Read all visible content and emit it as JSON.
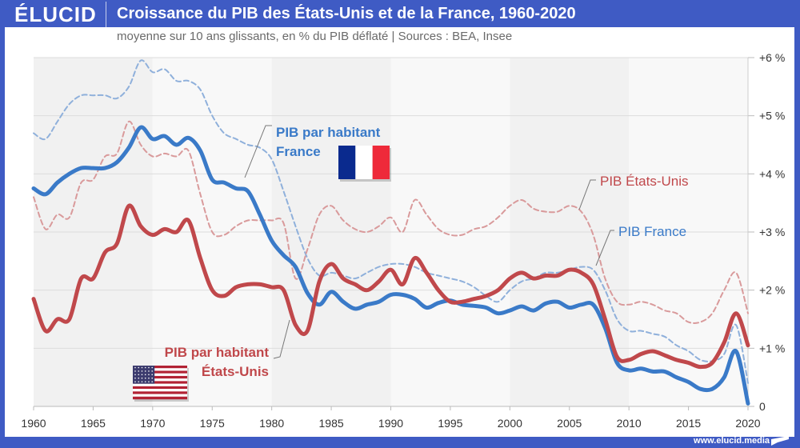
{
  "header": {
    "logo": "ÉLUCID",
    "title": "Croissance du PIB des États-Unis et de la France, 1960-2020",
    "subtitle": "moyenne sur 10 ans glissants, en % du PIB déflaté  |  Sources : BEA, Insee"
  },
  "footer": {
    "url": "www.elucid.media"
  },
  "colors": {
    "brand": "#3f5bc4",
    "france": "#3a7ac8",
    "usa": "#c0484b",
    "france_dashed": "#8fb0db",
    "usa_dashed": "#d99a9b"
  },
  "chart_data": {
    "type": "line",
    "title": "Croissance du PIB des États-Unis et de la France, 1960-2020",
    "subtitle": "moyenne sur 10 ans glissants, en % du PIB déflaté | Sources : BEA, Insee",
    "xlabel": "",
    "ylabel": "",
    "xlim": [
      1960,
      2020
    ],
    "ylim": [
      0,
      6
    ],
    "x_ticks": [
      1960,
      1965,
      1970,
      1975,
      1980,
      1985,
      1990,
      1995,
      2000,
      2005,
      2010,
      2015,
      2020
    ],
    "x_tick_labels": [
      "1960",
      "1965",
      "1970",
      "1975",
      "1980",
      "1985",
      "1990",
      "1995",
      "2000",
      "2005",
      "2010",
      "2015",
      "2020"
    ],
    "y_ticks": [
      0,
      1,
      2,
      3,
      4,
      5,
      6
    ],
    "y_tick_labels": [
      "0",
      "+1 %",
      "+2 %",
      "+3 %",
      "+4 %",
      "+5 %",
      "+6 %"
    ],
    "y_axis_side": "right",
    "grid": true,
    "decade_bands": true,
    "x": [
      1960,
      1961,
      1962,
      1963,
      1964,
      1965,
      1966,
      1967,
      1968,
      1969,
      1970,
      1971,
      1972,
      1973,
      1974,
      1975,
      1976,
      1977,
      1978,
      1979,
      1980,
      1981,
      1982,
      1983,
      1984,
      1985,
      1986,
      1987,
      1988,
      1989,
      1990,
      1991,
      1992,
      1993,
      1994,
      1995,
      1996,
      1997,
      1998,
      1999,
      2000,
      2001,
      2002,
      2003,
      2004,
      2005,
      2006,
      2007,
      2008,
      2009,
      2010,
      2011,
      2012,
      2013,
      2014,
      2015,
      2016,
      2017,
      2018,
      2019,
      2020
    ],
    "series": [
      {
        "name": "PIB France",
        "style": "dashed",
        "color": "#8fb0db",
        "values": [
          4.7,
          4.6,
          4.9,
          5.2,
          5.35,
          5.35,
          5.35,
          5.3,
          5.5,
          5.95,
          5.75,
          5.8,
          5.6,
          5.6,
          5.45,
          5.0,
          4.7,
          4.6,
          4.5,
          4.45,
          4.25,
          3.7,
          3.1,
          2.55,
          2.25,
          2.3,
          2.25,
          2.2,
          2.3,
          2.4,
          2.45,
          2.45,
          2.4,
          2.3,
          2.25,
          2.2,
          2.15,
          2.05,
          1.9,
          1.8,
          2.0,
          2.15,
          2.2,
          2.3,
          2.3,
          2.35,
          2.4,
          2.35,
          2.0,
          1.5,
          1.3,
          1.3,
          1.25,
          1.2,
          1.05,
          0.95,
          0.8,
          0.78,
          0.9,
          1.4,
          0.4
        ]
      },
      {
        "name": "PIB États-Unis",
        "style": "dashed",
        "color": "#d99a9b",
        "values": [
          3.6,
          3.05,
          3.3,
          3.25,
          3.85,
          3.9,
          4.3,
          4.35,
          4.9,
          4.5,
          4.3,
          4.35,
          4.3,
          4.4,
          3.65,
          3.0,
          2.95,
          3.1,
          3.2,
          3.2,
          3.2,
          3.15,
          2.2,
          2.7,
          3.3,
          3.45,
          3.2,
          3.05,
          3.0,
          3.1,
          3.25,
          3.0,
          3.55,
          3.3,
          3.05,
          2.95,
          2.95,
          3.05,
          3.1,
          3.25,
          3.45,
          3.55,
          3.4,
          3.35,
          3.35,
          3.45,
          3.35,
          2.95,
          2.2,
          1.8,
          1.75,
          1.8,
          1.75,
          1.65,
          1.6,
          1.45,
          1.45,
          1.6,
          2.0,
          2.3,
          1.6
        ]
      },
      {
        "name": "PIB par habitant France",
        "style": "solid",
        "color": "#3a7ac8",
        "values": [
          3.75,
          3.65,
          3.85,
          4.0,
          4.1,
          4.1,
          4.1,
          4.2,
          4.45,
          4.8,
          4.6,
          4.65,
          4.5,
          4.62,
          4.4,
          3.9,
          3.85,
          3.75,
          3.7,
          3.3,
          2.85,
          2.6,
          2.4,
          1.95,
          1.75,
          1.97,
          1.8,
          1.68,
          1.75,
          1.8,
          1.92,
          1.92,
          1.85,
          1.7,
          1.78,
          1.82,
          1.75,
          1.73,
          1.7,
          1.6,
          1.65,
          1.72,
          1.65,
          1.77,
          1.8,
          1.7,
          1.75,
          1.75,
          1.35,
          0.75,
          0.62,
          0.65,
          0.6,
          0.6,
          0.5,
          0.42,
          0.3,
          0.3,
          0.5,
          0.95,
          0.05
        ]
      },
      {
        "name": "PIB par habitant États-Unis",
        "style": "solid",
        "color": "#c0484b",
        "values": [
          1.85,
          1.3,
          1.5,
          1.5,
          2.2,
          2.2,
          2.65,
          2.8,
          3.45,
          3.1,
          2.95,
          3.05,
          3.0,
          3.2,
          2.55,
          2.0,
          1.9,
          2.05,
          2.1,
          2.1,
          2.05,
          2.0,
          1.4,
          1.3,
          2.15,
          2.45,
          2.2,
          2.1,
          2.0,
          2.15,
          2.35,
          2.1,
          2.55,
          2.3,
          2.0,
          1.8,
          1.8,
          1.85,
          1.9,
          2.0,
          2.2,
          2.3,
          2.2,
          2.25,
          2.25,
          2.35,
          2.3,
          2.1,
          1.5,
          0.85,
          0.8,
          0.9,
          0.95,
          0.88,
          0.8,
          0.75,
          0.68,
          0.75,
          1.1,
          1.6,
          1.05
        ]
      }
    ],
    "annotations": [
      {
        "text_lines": [
          "PIB par habitant",
          "France"
        ],
        "series": "PIB par habitant France",
        "flag": "France",
        "bold": true
      },
      {
        "text_lines": [
          "PIB par habitant",
          "États-Unis"
        ],
        "series": "PIB par habitant États-Unis",
        "flag": "États-Unis",
        "bold": true
      },
      {
        "text_lines": [
          "PIB États-Unis"
        ],
        "series": "PIB États-Unis",
        "bold": false
      },
      {
        "text_lines": [
          "PIB France"
        ],
        "series": "PIB France",
        "bold": false
      }
    ]
  }
}
